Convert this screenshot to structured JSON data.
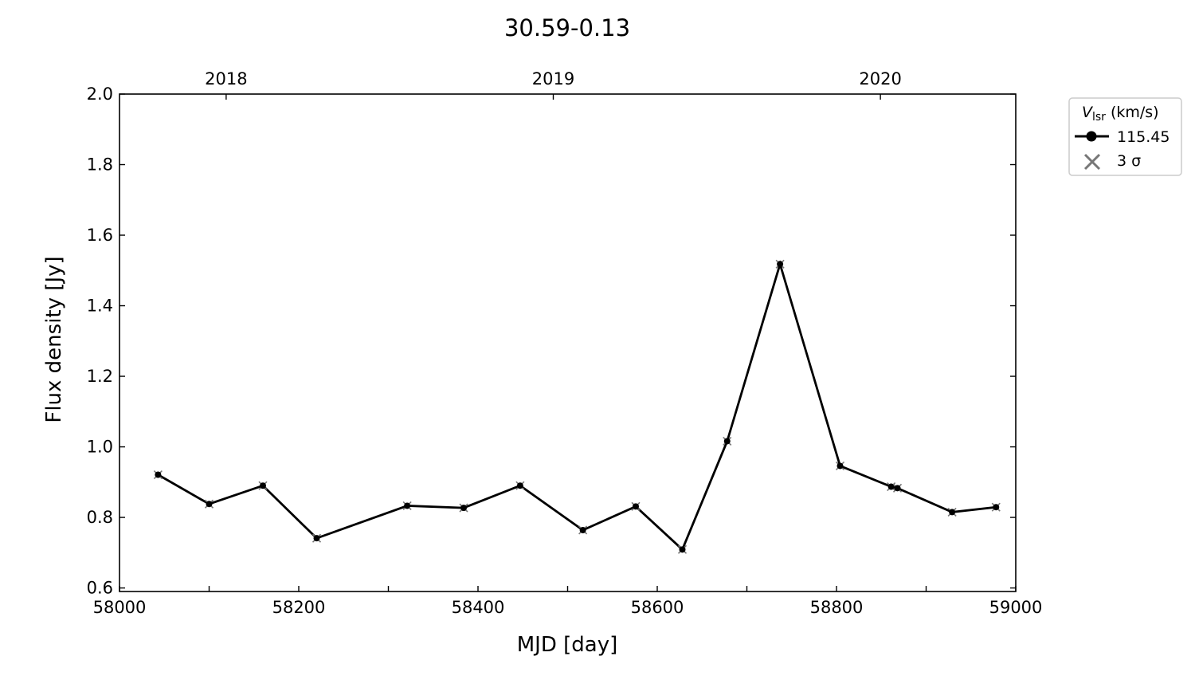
{
  "chart_data": {
    "type": "line",
    "title": "30.59-0.13",
    "xlabel": "MJD [day]",
    "ylabel": "Flux density [Jy]",
    "xlim": [
      58000,
      59000
    ],
    "ylim": [
      0.59,
      2.0
    ],
    "xticks": [
      58000,
      58200,
      58400,
      58600,
      58800,
      59000
    ],
    "xticks_minor": [
      58100,
      58300,
      58500,
      58700,
      58900
    ],
    "yticks": [
      0.6,
      0.8,
      1.0,
      1.2,
      1.4,
      1.6,
      1.8,
      2.0
    ],
    "ytick_labels": [
      "0.6",
      "0.8",
      "1.0",
      "1.2",
      "1.4",
      "1.6",
      "1.8",
      "2.0"
    ],
    "top_axis": {
      "ticks": [
        {
          "label": "2018",
          "mjd": 58119
        },
        {
          "label": "2019",
          "mjd": 58484
        },
        {
          "label": "2020",
          "mjd": 58849
        }
      ]
    },
    "grid": false,
    "legend": {
      "placement": "outside-right-top",
      "title": "V",
      "title_sub": "lsr",
      "title_unit": "(km/s)",
      "entries": [
        "115.45",
        "3 σ"
      ]
    },
    "series": [
      {
        "name": "115.45",
        "color": "#000000",
        "x": [
          58043,
          58100,
          58160,
          58220,
          58321,
          58384,
          58447,
          58517,
          58576,
          58628,
          58678,
          58737,
          58804,
          58861,
          58868,
          58929,
          58978
        ],
        "y": [
          0.921,
          0.838,
          0.89,
          0.741,
          0.833,
          0.827,
          0.89,
          0.764,
          0.831,
          0.709,
          1.016,
          1.518,
          0.946,
          0.887,
          0.883,
          0.815,
          0.829
        ]
      }
    ],
    "threshold_marker_color": "#777777"
  }
}
